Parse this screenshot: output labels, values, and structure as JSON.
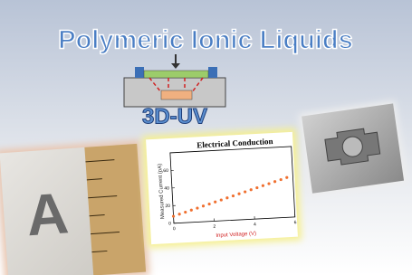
{
  "header": {
    "title": "Polymeric Ionic Liquids",
    "subtitle": "3D-UV"
  },
  "photo_left": {
    "letter": "A"
  },
  "inset_chart": {
    "type": "scatter",
    "title": "Electrical Conduction",
    "xlabel": "Input Voltage (V)",
    "ylabel": "Measured Current (pA)",
    "x": [
      0,
      0.3,
      0.6,
      0.9,
      1.2,
      1.5,
      1.8,
      2.1,
      2.4,
      2.7,
      3.0,
      3.3,
      3.6,
      3.9,
      4.2,
      4.5,
      4.8,
      5.1,
      5.4,
      5.7
    ],
    "values": [
      8,
      10,
      11.9,
      13.9,
      15.8,
      17.8,
      19.7,
      21.7,
      23.6,
      25.6,
      27.5,
      29.5,
      31.4,
      33.4,
      35.3,
      37.3,
      39.2,
      41.2,
      43.1,
      45.1
    ],
    "xlim": [
      0,
      6
    ],
    "ylim": [
      0,
      80
    ],
    "xticks": [
      0,
      2,
      4,
      6
    ],
    "yticks": [
      0,
      20,
      40,
      60
    ],
    "color": "#f07030"
  }
}
